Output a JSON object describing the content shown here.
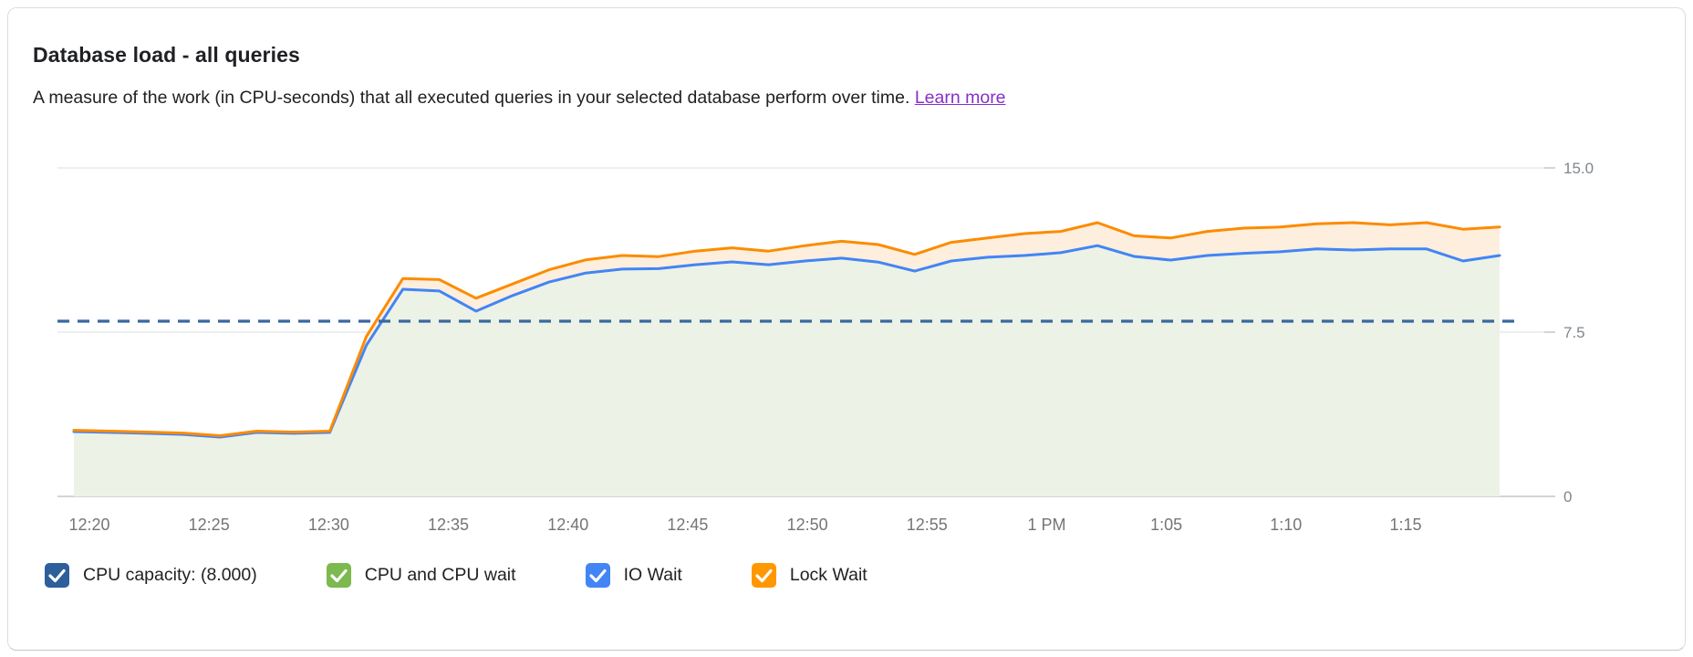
{
  "card": {
    "title": "Database load - all queries",
    "subtitle": "A measure of the work (in CPU-seconds) that all executed queries in your selected database perform over time.",
    "learn_more_label": "Learn more"
  },
  "colors": {
    "link_purple": "#8430c9",
    "capacity_blue": "#3a68a0",
    "io_wait_blue": "#4285f4",
    "lock_wait_orange": "#fb8c00",
    "cpu_green": "#7cb94e",
    "green_fill": "#edf2e6",
    "peach_fill": "#fdeedd",
    "gridline": "#e9eaec",
    "axis_line": "#c4c7cb",
    "y_tick_text": "#80868b",
    "x_tick_text": "#757575",
    "capacity_checkbox": "#2d5f9b",
    "green_checkbox": "#7cb94e",
    "blue_checkbox": "#4285f4",
    "orange_checkbox": "#ff9800"
  },
  "chart_data": {
    "type": "area",
    "title": "Database load - all queries",
    "ylabel": "",
    "xlabel": "",
    "ylim": [
      0,
      15
    ],
    "y_ticks": [
      0,
      7.5,
      15.0
    ],
    "y_tick_labels": [
      "0",
      "7.5",
      "15.0"
    ],
    "x_labels": [
      "12:20",
      "12:25",
      "12:30",
      "12:35",
      "12:40",
      "12:45",
      "12:50",
      "12:55",
      "1 PM",
      "1:05",
      "1:10",
      "1:15"
    ],
    "x_sampling_note": "40 points evenly spaced, ~12:19 PM to ~1:19 PM (~1.5 min apart)",
    "grid": "horizontal-only",
    "legend_position": "bottom",
    "capacity_line": {
      "label": "CPU capacity",
      "value": 8.0,
      "display_value": "(8.000)",
      "style": "dashed"
    },
    "series": [
      {
        "name": "CPU and CPU wait",
        "render": "area",
        "note": "green area top coincides with IO Wait line (IO Wait contribution ~0), so no separate green line is visible",
        "values": [
          2.96,
          2.92,
          2.88,
          2.83,
          2.71,
          2.92,
          2.88,
          2.92,
          6.9,
          9.46,
          9.38,
          8.46,
          9.17,
          9.79,
          10.2,
          10.38,
          10.4,
          10.58,
          10.71,
          10.58,
          10.75,
          10.88,
          10.7,
          10.29,
          10.75,
          10.92,
          11.0,
          11.13,
          11.45,
          10.96,
          10.79,
          11.0,
          11.1,
          11.17,
          11.3,
          11.25,
          11.3,
          11.3,
          10.75,
          11.0
        ]
      },
      {
        "name": "IO Wait",
        "render": "line+cumulative-boundary",
        "values": [
          2.96,
          2.92,
          2.88,
          2.83,
          2.71,
          2.92,
          2.88,
          2.92,
          6.9,
          9.46,
          9.38,
          8.46,
          9.17,
          9.79,
          10.2,
          10.38,
          10.4,
          10.58,
          10.71,
          10.58,
          10.75,
          10.88,
          10.7,
          10.29,
          10.75,
          10.92,
          11.0,
          11.13,
          11.45,
          10.96,
          10.79,
          11.0,
          11.1,
          11.17,
          11.3,
          11.25,
          11.3,
          11.3,
          10.75,
          11.0
        ]
      },
      {
        "name": "Lock Wait",
        "render": "line+cumulative-boundary",
        "values": [
          3.02,
          2.98,
          2.94,
          2.89,
          2.77,
          2.98,
          2.94,
          2.98,
          7.3,
          9.95,
          9.9,
          9.05,
          9.7,
          10.35,
          10.8,
          11.0,
          10.95,
          11.2,
          11.35,
          11.2,
          11.45,
          11.65,
          11.5,
          11.05,
          11.6,
          11.8,
          12.0,
          12.1,
          12.5,
          11.9,
          11.8,
          12.1,
          12.25,
          12.3,
          12.45,
          12.5,
          12.4,
          12.5,
          12.2,
          12.3
        ]
      }
    ]
  },
  "legend": {
    "items": [
      {
        "label": "CPU capacity: (8.000)",
        "color": "#2d5f9b",
        "checked": true
      },
      {
        "label": "CPU and CPU wait",
        "color": "#7cb94e",
        "checked": true
      },
      {
        "label": "IO Wait",
        "color": "#4285f4",
        "checked": true
      },
      {
        "label": "Lock Wait",
        "color": "#ff9800",
        "checked": true
      }
    ]
  }
}
